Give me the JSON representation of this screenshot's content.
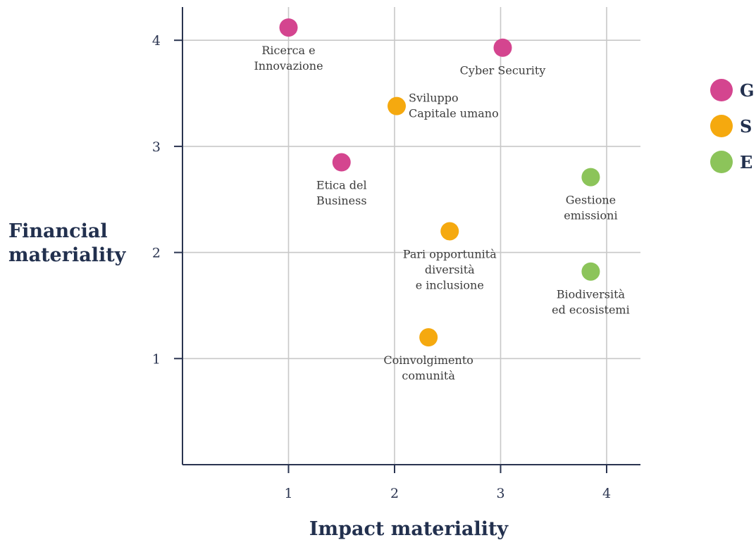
{
  "chart_data": {
    "type": "scatter",
    "xlabel": "Impact materiality",
    "ylabel": [
      "Financial",
      "materiality"
    ],
    "xlim": [
      0,
      4.3
    ],
    "ylim": [
      0,
      4.3
    ],
    "xticks": [
      "1",
      "2",
      "3",
      "4"
    ],
    "yticks": [
      "1",
      "2",
      "3",
      "4"
    ],
    "grid": true,
    "legend_position": "right",
    "legend": [
      {
        "key": "G",
        "label": "G",
        "color": "#d4458f"
      },
      {
        "key": "S",
        "label": "S",
        "color": "#f5a90f"
      },
      {
        "key": "E",
        "label": "E",
        "color": "#8cc45a"
      }
    ],
    "points": [
      {
        "x": 1.0,
        "y": 4.12,
        "group": "G",
        "label": [
          "Ricerca e",
          "Innovazione"
        ],
        "label_pos": "below"
      },
      {
        "x": 3.02,
        "y": 3.93,
        "group": "G",
        "label": [
          "Cyber Security"
        ],
        "label_pos": "below"
      },
      {
        "x": 2.02,
        "y": 3.38,
        "group": "S",
        "label": [
          "Sviluppo",
          "Capitale umano"
        ],
        "label_pos": "right"
      },
      {
        "x": 1.5,
        "y": 2.85,
        "group": "G",
        "label": [
          "Etica del",
          "Business"
        ],
        "label_pos": "below"
      },
      {
        "x": 3.85,
        "y": 2.71,
        "group": "E",
        "label": [
          "Gestione",
          "emissioni"
        ],
        "label_pos": "below"
      },
      {
        "x": 2.52,
        "y": 2.2,
        "group": "S",
        "label": [
          "Pari opportunità",
          "diversità",
          "e inclusione"
        ],
        "label_pos": "below"
      },
      {
        "x": 3.85,
        "y": 1.82,
        "group": "E",
        "label": [
          "Biodiversità",
          "ed ecosistemi"
        ],
        "label_pos": "below"
      },
      {
        "x": 2.32,
        "y": 1.2,
        "group": "S",
        "label": [
          "Coinvolgimento",
          "comunità"
        ],
        "label_pos": "below"
      }
    ]
  }
}
